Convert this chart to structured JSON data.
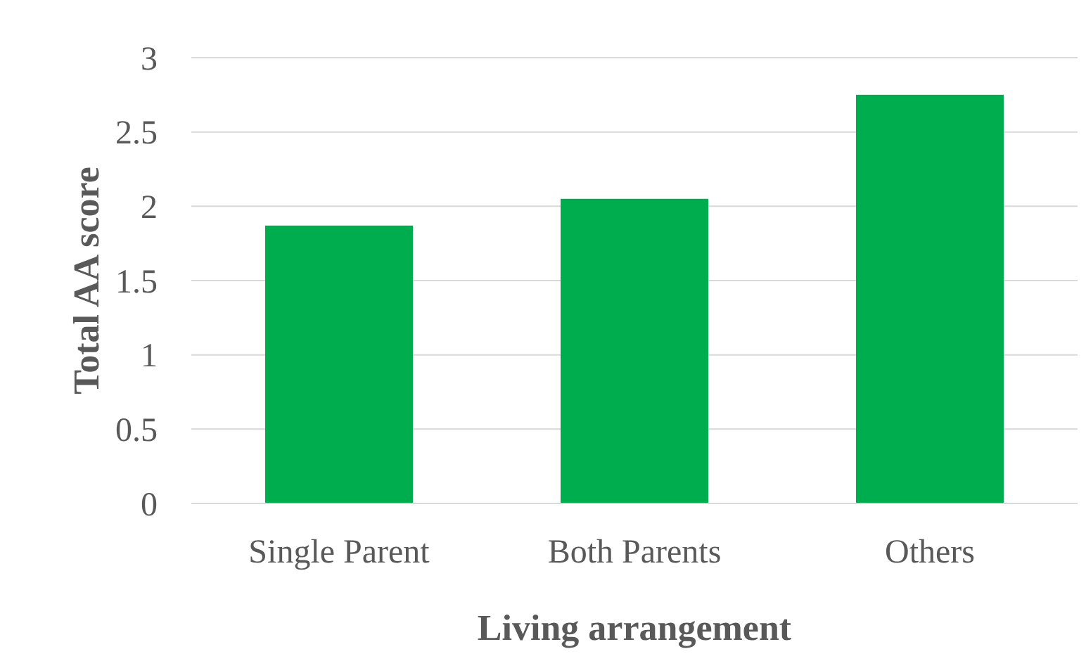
{
  "chart_data": {
    "type": "bar",
    "xlabel": "Living arrangement",
    "ylabel": "Total AA score",
    "categories": [
      "Single Parent",
      "Both Parents",
      "Others"
    ],
    "values": [
      1.87,
      2.05,
      2.75
    ],
    "color": "#00ad4e",
    "ylim": [
      0,
      3
    ],
    "yticks": [
      0,
      0.5,
      1,
      1.5,
      2,
      2.5,
      3
    ],
    "grid": "y"
  }
}
